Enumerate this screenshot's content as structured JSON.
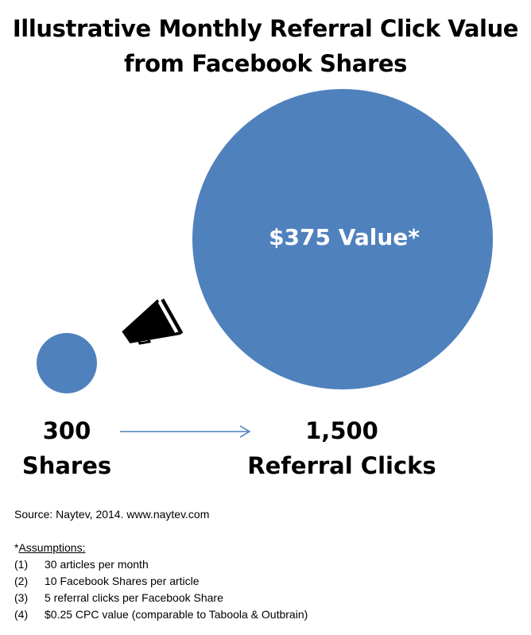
{
  "title": {
    "line1": "Illustrative Monthly Referral Click Value",
    "line2": "from Facebook Shares"
  },
  "colors": {
    "circle": "#4f81bd",
    "arrow": "#4a7ebb"
  },
  "big_circle_label": "$375 Value*",
  "left": {
    "number": "300",
    "label": "Shares"
  },
  "right": {
    "number": "1,500",
    "label": "Referral Clicks"
  },
  "icons": {
    "megaphone": "megaphone-icon",
    "arrow": "arrow-right-icon"
  },
  "source": "Source: Naytev, 2014. www.naytev.com",
  "assumptions": {
    "prefix": "*",
    "heading": "Assumptions:",
    "items": [
      {
        "num": "(1)",
        "text": "30 articles per month"
      },
      {
        "num": "(2)",
        "text": "10 Facebook Shares per article"
      },
      {
        "num": "(3)",
        "text": "5 referral clicks per Facebook Share"
      },
      {
        "num": "(4)",
        "text": "$0.25 CPC value (comparable to Taboola & Outbrain)"
      }
    ]
  }
}
